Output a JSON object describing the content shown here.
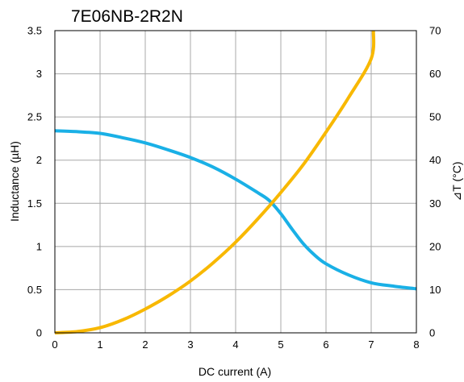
{
  "chart_data": {
    "type": "line",
    "title": "7E06NB-2R2N",
    "xlabel": "DC current (A)",
    "ylabel": "Inductance (µH)",
    "y2label": "⊿T (°C)",
    "xlim": [
      0,
      8
    ],
    "ylim": [
      0,
      3.5
    ],
    "y2lim": [
      0,
      70
    ],
    "grid": true,
    "x_ticks": [
      "0",
      "1",
      "2",
      "3",
      "4",
      "5",
      "6",
      "7",
      "8"
    ],
    "y_ticks": [
      "0",
      "0.5",
      "1",
      "1.5",
      "2",
      "2.5",
      "3",
      "3.5"
    ],
    "y2_ticks": [
      "0",
      "10",
      "20",
      "30",
      "40",
      "50",
      "60",
      "70"
    ],
    "series": [
      {
        "axis": "left",
        "color": "#1ab0e6",
        "x": [
          0,
          0.5,
          1,
          1.5,
          2,
          2.5,
          3,
          3.5,
          4,
          4.5,
          4.75,
          5,
          5.25,
          5.5,
          5.75,
          6,
          6.5,
          7,
          7.5,
          8
        ],
        "y": [
          2.34,
          2.33,
          2.31,
          2.26,
          2.2,
          2.12,
          2.03,
          1.92,
          1.78,
          1.62,
          1.53,
          1.38,
          1.2,
          1.03,
          0.9,
          0.8,
          0.67,
          0.58,
          0.54,
          0.51
        ]
      },
      {
        "axis": "right",
        "color": "#f8b800",
        "x": [
          0,
          0.5,
          1,
          1.5,
          2,
          2.5,
          3,
          3.5,
          4,
          4.5,
          5,
          5.5,
          6,
          6.5,
          7,
          7.05
        ],
        "y": [
          0,
          0.3,
          1.2,
          3.0,
          5.5,
          8.5,
          12.0,
          16.2,
          21.0,
          26.5,
          32.5,
          39.0,
          46.5,
          54.5,
          63.5,
          70
        ]
      }
    ]
  }
}
